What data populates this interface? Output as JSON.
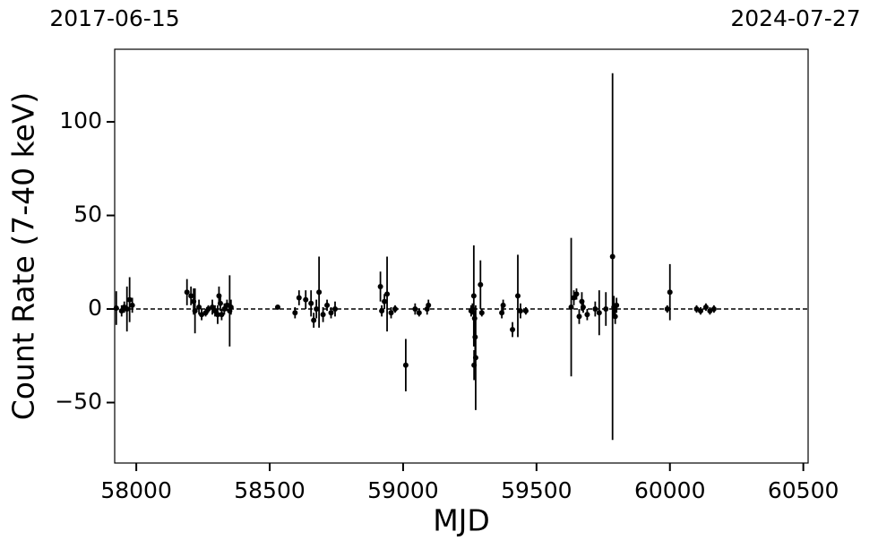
{
  "chart_data": {
    "type": "errorbar",
    "xlabel": "MJD",
    "ylabel": "Count Rate (7-40 keV)",
    "color": "#000000",
    "hline": 0,
    "xlim": [
      57919,
      60518
    ],
    "ylim": [
      -82.3,
      138.8
    ],
    "xticks": [
      58000,
      58500,
      59000,
      59500,
      60000,
      60500
    ],
    "yticks": [
      {
        "value": -50,
        "label": "−50"
      },
      0,
      50,
      100
    ],
    "x2ticks": [
      {
        "value": 57919,
        "label": "2017-06-15"
      },
      {
        "value": 60518,
        "label": "2024-07-27"
      }
    ],
    "x": [
      57925,
      57945,
      57955,
      57965,
      57975,
      57985,
      58190,
      58205,
      58215,
      58220,
      58235,
      58245,
      58260,
      58270,
      58285,
      58295,
      58305,
      58310,
      58315,
      58320,
      58330,
      58340,
      58350,
      58355,
      58530,
      58595,
      58610,
      58635,
      58655,
      58665,
      58675,
      58685,
      58700,
      58715,
      58730,
      58745,
      58915,
      58920,
      58930,
      58940,
      58955,
      58970,
      59010,
      59045,
      59060,
      59090,
      59095,
      59255,
      59260,
      59265,
      59268,
      59270,
      59272,
      59266,
      59290,
      59295,
      59370,
      59375,
      59410,
      59430,
      59440,
      59460,
      59630,
      59640,
      59650,
      59660,
      59670,
      59675,
      59690,
      59720,
      59735,
      59760,
      59785,
      59790,
      59795,
      59800,
      59990,
      60000,
      60100,
      60115,
      60135,
      60150,
      60165
    ],
    "values": [
      0.5,
      -1,
      1,
      0,
      5,
      2,
      9,
      7,
      4,
      -1,
      1,
      -3,
      -2,
      0,
      1,
      -1,
      -3,
      7,
      3,
      -3,
      0,
      2,
      -1,
      1,
      1,
      -2,
      6,
      5,
      3,
      -6,
      0,
      9,
      -3,
      2,
      -2,
      0,
      12,
      -1,
      4,
      8,
      -2,
      0,
      -30,
      0,
      -2,
      0,
      2,
      -1,
      0,
      7,
      -5,
      -15,
      -26,
      -30,
      13,
      -2,
      -2,
      2,
      -11,
      7,
      -1,
      -1,
      1,
      6,
      8,
      -4,
      4,
      1,
      -3,
      0,
      -2,
      0,
      28,
      1,
      -4,
      2,
      0,
      9,
      0,
      -1,
      1,
      -1,
      0
    ],
    "errors": [
      9,
      3,
      3,
      12,
      12,
      4,
      7,
      5,
      7,
      12,
      4,
      3,
      2,
      2,
      4,
      3,
      5,
      5,
      4,
      3,
      3,
      3,
      19,
      4,
      1,
      3,
      4,
      5,
      7,
      4,
      5,
      19,
      4,
      3,
      3,
      4,
      8,
      3,
      4,
      20,
      3,
      2,
      14,
      3,
      2,
      3,
      3,
      3,
      3,
      27,
      4,
      8,
      28,
      8,
      13,
      2,
      3,
      3,
      4,
      22,
      4,
      2,
      37,
      4,
      3,
      4,
      5,
      3,
      3,
      4,
      12,
      9,
      98,
      6,
      4,
      4,
      2,
      15,
      2,
      2,
      2,
      2,
      2
    ]
  }
}
